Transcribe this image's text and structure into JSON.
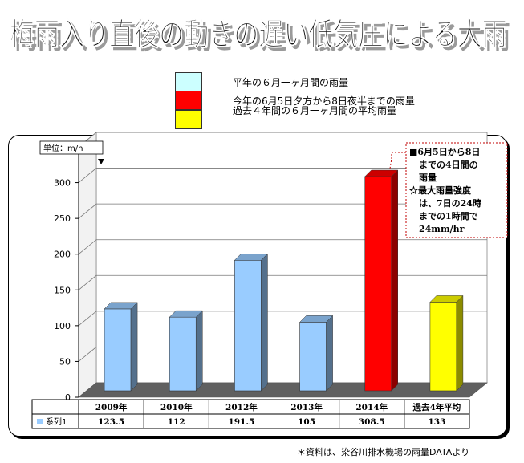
{
  "title": "梅雨入り直後の動きの遅い低気圧による大雨",
  "legend": [
    {
      "label": "平年の６月一ヶ月間の雨量",
      "color": "#ccffff"
    },
    {
      "label": "今年の6月5日夕方から8日夜半までの雨量",
      "color": "#ff0000"
    },
    {
      "label": "過去４年間の６月一ヶ月間の平均雨量",
      "color": "#ffff00"
    }
  ],
  "chart_data": {
    "type": "bar",
    "unit_label": "単位：m/h",
    "categories": [
      "2009年",
      "2010年",
      "2012年",
      "2013年",
      "2014年",
      "過去4年平均"
    ],
    "series": [
      {
        "name": "系列1",
        "values": [
          123.5,
          112,
          191.5,
          105,
          308.5,
          133
        ],
        "value_labels": [
          "123.5",
          "112",
          "191.5",
          "105",
          "308.5",
          "133"
        ]
      }
    ],
    "bar_colors": [
      "#99ccff",
      "#99ccff",
      "#99ccff",
      "#99ccff",
      "#ff0000",
      "#ffff00"
    ],
    "ylim": [
      0,
      350
    ],
    "yticks": [
      0,
      50,
      100,
      150,
      200,
      250,
      300,
      350
    ],
    "grid": true,
    "annotation": {
      "lines": [
        "■6月5日から8日",
        "までの4日間の",
        "雨量",
        "☆最大雨量強度",
        "は、7日の24時",
        "までの1時間で",
        "24mm/hr"
      ]
    }
  },
  "source_note": "＊資料は、染谷川排水機場の雨量DATAより"
}
